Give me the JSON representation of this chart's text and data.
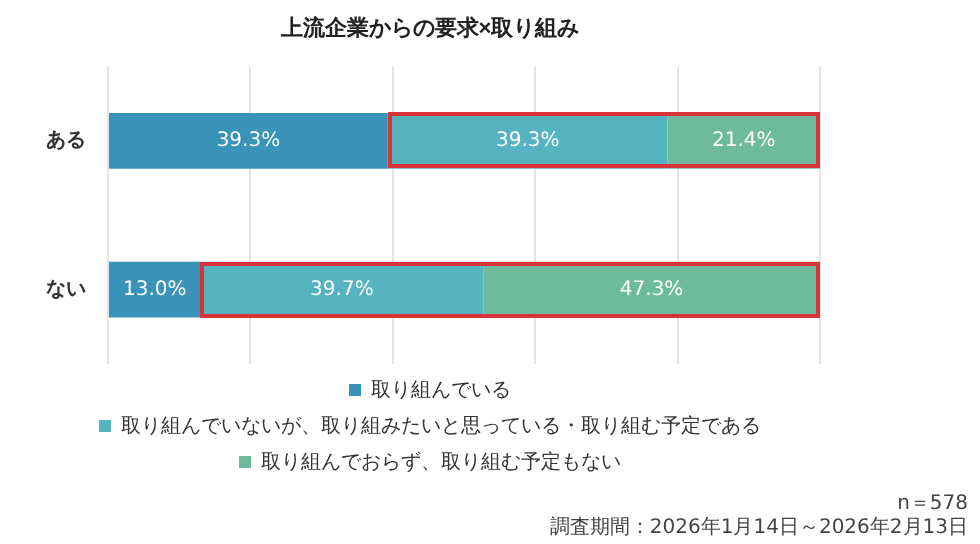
{
  "chart_data": {
    "type": "bar",
    "orientation": "horizontal",
    "stacked": true,
    "title": "上流企業からの要求×取り組み",
    "categories": [
      "ある",
      "ない"
    ],
    "series": [
      {
        "name": "取り組んでいる",
        "color": "#3a93b8",
        "values": [
          39.3,
          13.0
        ],
        "value_labels": [
          "39.3%",
          "13.0%"
        ]
      },
      {
        "name": "取り組んでいないが、取り組みたいと思っている・取り組む予定である",
        "color": "#56b4c0",
        "values": [
          39.3,
          39.7
        ],
        "value_labels": [
          "39.3%",
          "39.7%"
        ]
      },
      {
        "name": "取り組んでおらず、取り組む予定もない",
        "color": "#6dbb9c",
        "values": [
          21.4,
          47.3
        ],
        "value_labels": [
          "21.4%",
          "47.3%"
        ]
      }
    ],
    "tick_labels": "y",
    "grid": "x",
    "legend": "bottom",
    "annotations": [
      "n＝578",
      "調査期間：2026年1月14日～2026年2月13日"
    ]
  }
}
